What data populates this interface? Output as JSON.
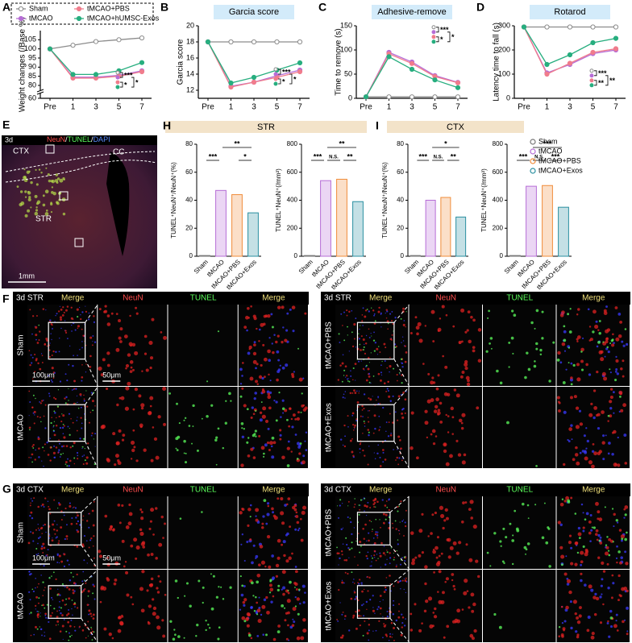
{
  "chart_data": [
    {
      "panel": "A",
      "type": "line",
      "y_label": "Weight changes (/Base %)",
      "categories": [
        "Pre",
        "1",
        "3",
        "5",
        "7"
      ],
      "ylim": [
        60,
        110
      ],
      "ybreak": [
        60,
        80
      ],
      "yticks": [
        60,
        80,
        85,
        90,
        95,
        100,
        105
      ],
      "legend": true,
      "series": [
        {
          "name": "Sham",
          "color": "#8c8c8c",
          "marker": "open",
          "values": [
            100,
            102,
            104,
            105,
            106
          ]
        },
        {
          "name": "tMCAO",
          "color": "#b66dd6",
          "marker": "filled",
          "values": [
            100,
            84.5,
            84.5,
            85.5,
            88
          ]
        },
        {
          "name": "tMCAO+PBS",
          "color": "#f07c8c",
          "marker": "filled",
          "values": [
            100,
            84,
            84,
            85,
            87.5
          ]
        },
        {
          "name": "tMCAO+hUMSC-Exos",
          "color": "#27ae7f",
          "marker": "filled",
          "values": [
            100,
            86,
            86,
            88,
            92.5
          ]
        }
      ],
      "annotations": [
        "***",
        "*",
        "*"
      ]
    },
    {
      "panel": "B",
      "type": "line",
      "title": "Garcia score",
      "y_label": "Garcia score",
      "categories": [
        "Pre",
        "1",
        "3",
        "5",
        "7"
      ],
      "ylim": [
        11,
        20
      ],
      "yticks": [
        12,
        14,
        16,
        18,
        20
      ],
      "series": [
        {
          "color": "#8c8c8c",
          "marker": "open",
          "values": [
            18,
            18,
            18,
            18,
            18
          ]
        },
        {
          "color": "#b66dd6",
          "marker": "filled",
          "values": [
            18,
            12.5,
            13,
            13.8,
            14.5
          ]
        },
        {
          "color": "#f07c8c",
          "marker": "filled",
          "values": [
            18,
            12.4,
            13,
            13.6,
            14.3
          ]
        },
        {
          "color": "#27ae7f",
          "marker": "filled",
          "values": [
            18,
            12.9,
            13.6,
            14.5,
            15.4
          ]
        }
      ],
      "annotations": [
        "***",
        "*",
        "*"
      ]
    },
    {
      "panel": "C",
      "type": "line",
      "title": "Adhesive-remove",
      "y_label": "Time to remove (s)",
      "categories": [
        "Pre",
        "1",
        "3",
        "5",
        "7"
      ],
      "ylim": [
        0,
        150
      ],
      "yticks": [
        0,
        50,
        100,
        150
      ],
      "series": [
        {
          "color": "#8c8c8c",
          "marker": "open",
          "values": [
            3,
            3,
            3,
            3,
            3
          ]
        },
        {
          "color": "#b66dd6",
          "marker": "filled",
          "values": [
            3,
            95,
            75,
            47,
            33
          ]
        },
        {
          "color": "#f07c8c",
          "marker": "filled",
          "values": [
            3,
            92,
            72,
            45,
            32
          ]
        },
        {
          "color": "#27ae7f",
          "marker": "filled",
          "values": [
            3,
            86,
            60,
            38,
            22
          ]
        }
      ],
      "annotations": [
        "***",
        "*",
        "*"
      ]
    },
    {
      "panel": "D",
      "type": "line",
      "title": "Rotarod",
      "y_label": "Latency time to fall (s)",
      "categories": [
        "Pre",
        "1",
        "3",
        "5",
        "7"
      ],
      "ylim": [
        0,
        300
      ],
      "yticks": [
        0,
        100,
        200,
        300
      ],
      "series": [
        {
          "color": "#8c8c8c",
          "marker": "open",
          "values": [
            295,
            295,
            295,
            295,
            295
          ]
        },
        {
          "color": "#b66dd6",
          "marker": "filled",
          "values": [
            295,
            105,
            140,
            185,
            200
          ]
        },
        {
          "color": "#f07c8c",
          "marker": "filled",
          "values": [
            295,
            100,
            145,
            190,
            205
          ]
        },
        {
          "color": "#27ae7f",
          "marker": "filled",
          "values": [
            295,
            140,
            180,
            230,
            248
          ]
        }
      ],
      "annotations": [
        "***",
        "**",
        "**"
      ]
    },
    {
      "type": "bar",
      "y_label": "TUNEL⁺NeuN⁺/NeuN⁺(%)",
      "categories": [
        "Sham",
        "tMCAO",
        "tMCAO+PBS",
        "tMCAO+Exos"
      ],
      "colors": [
        "#777777",
        "#b66dd6",
        "#f08c3a",
        "#2a8fa0"
      ],
      "values": [
        0.5,
        47,
        44,
        31
      ],
      "ylim": [
        0,
        80
      ],
      "yticks": [
        0,
        20,
        40,
        60,
        80
      ],
      "annotations": [
        "***",
        "**",
        "*"
      ]
    },
    {
      "type": "bar",
      "y_label": "TUNEL⁺NeuN⁺(/mm²)",
      "categories": [
        "Sham",
        "tMCAO",
        "tMCAO+PBS",
        "tMCAO+Exos"
      ],
      "colors": [
        "#777777",
        "#b66dd6",
        "#f08c3a",
        "#2a8fa0"
      ],
      "values": [
        5,
        540,
        550,
        390
      ],
      "ylim": [
        0,
        800
      ],
      "yticks": [
        0,
        200,
        400,
        600,
        800
      ],
      "annotations": [
        "***",
        "N.S.",
        "**",
        "**"
      ]
    },
    {
      "type": "bar",
      "y_label": "TUNEL⁺NeuN⁺/NeuN⁺(%)",
      "categories": [
        "Sham",
        "tMCAO",
        "tMCAO+PBS",
        "tMCAO+Exos"
      ],
      "colors": [
        "#777777",
        "#b66dd6",
        "#f08c3a",
        "#2a8fa0"
      ],
      "values": [
        0.5,
        40,
        42,
        28
      ],
      "ylim": [
        0,
        80
      ],
      "yticks": [
        0,
        20,
        40,
        60,
        80
      ],
      "annotations": [
        "***",
        "N.S.",
        "**",
        "*"
      ]
    },
    {
      "type": "bar",
      "y_label": "TUNEL⁺NeuN⁺(/mm²)",
      "categories": [
        "Sham",
        "tMCAO",
        "tMCAO+PBS",
        "tMCAO+Exos"
      ],
      "colors": [
        "#777777",
        "#b66dd6",
        "#f08c3a",
        "#2a8fa0"
      ],
      "values": [
        5,
        500,
        505,
        350
      ],
      "ylim": [
        0,
        800
      ],
      "yticks": [
        0,
        200,
        400,
        600,
        800
      ],
      "annotations": [
        "***",
        "N.S.",
        "***",
        "***"
      ]
    }
  ],
  "bar_groups": [
    {
      "panel": "H",
      "title": "STR"
    },
    {
      "panel": "I",
      "title": "CTX"
    }
  ],
  "bar_legend": [
    "Sham",
    "tMCAO",
    "tMCAO+PBS",
    "tMCAO+Exos"
  ],
  "section_E": {
    "panel": "E",
    "day": "3d",
    "stains": [
      "NeuN",
      "/",
      "TUNEL",
      "/",
      "DAPI"
    ],
    "regions": [
      "CTX",
      "CC",
      "STR"
    ],
    "scale_bar": "1mm"
  },
  "image_panels": [
    {
      "panel": "F",
      "blocks": [
        {
          "region": "3d STR",
          "columns": [
            "Merge",
            "NeuN",
            "TUNEL",
            "Merge"
          ],
          "rows": [
            "Sham",
            "tMCAO"
          ],
          "scale_bars": [
            "100μm",
            "50μm"
          ]
        },
        {
          "region": "3d STR",
          "columns": [
            "Merge",
            "NeuN",
            "TUNEL",
            "Merge"
          ],
          "rows": [
            "tMCAO+PBS",
            "tMCAO+Exos"
          ]
        }
      ]
    },
    {
      "panel": "G",
      "blocks": [
        {
          "region": "3d CTX",
          "columns": [
            "Merge",
            "NeuN",
            "TUNEL",
            "Merge"
          ],
          "rows": [
            "Sham",
            "tMCAO"
          ],
          "scale_bars": [
            "100μm",
            "50μm"
          ]
        },
        {
          "region": "3d CTX",
          "columns": [
            "Merge",
            "NeuN",
            "TUNEL",
            "Merge"
          ],
          "rows": [
            "tMCAO+PBS",
            "tMCAO+Exos"
          ]
        }
      ]
    }
  ]
}
